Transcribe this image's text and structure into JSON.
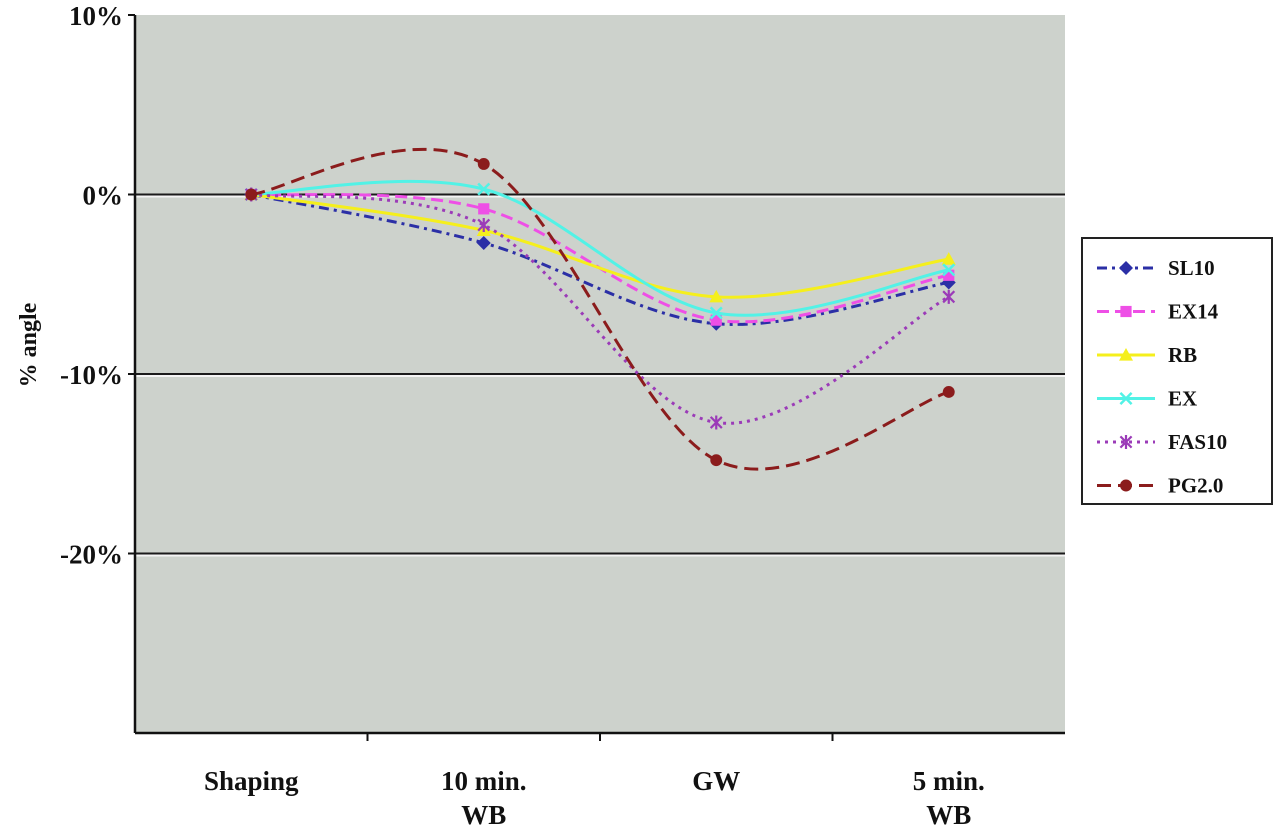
{
  "chart_data": {
    "type": "line",
    "categories": [
      "Shaping",
      "10 min.\nWB",
      "GW",
      "5 min.\nWB"
    ],
    "ylabel": "% angle",
    "ylim": [
      -30,
      10
    ],
    "y_ticks": [
      "10%",
      "0%",
      "-10%",
      "-20%"
    ],
    "y_tick_values": [
      10,
      0,
      -10,
      -20
    ],
    "grid_lines": [
      0,
      -10,
      -20
    ],
    "legend_position": "right",
    "plot_background": "#cdd2cc",
    "series": [
      {
        "name": "SL10",
        "values": [
          0,
          -2.7,
          -7.2,
          -4.9
        ],
        "color": "#2b2fa6",
        "dash": "10,5,3,5",
        "marker": "diamond"
      },
      {
        "name": "EX14",
        "values": [
          0,
          -0.8,
          -7.0,
          -4.5
        ],
        "color": "#ee4fe6",
        "dash": "12,6",
        "marker": "square"
      },
      {
        "name": "RB",
        "values": [
          0,
          -2.0,
          -5.7,
          -3.6
        ],
        "color": "#f5ef1c",
        "dash": "",
        "marker": "triangle"
      },
      {
        "name": "EX",
        "values": [
          0,
          0.3,
          -6.6,
          -4.2
        ],
        "color": "#52f2e6",
        "dash": "",
        "marker": "x"
      },
      {
        "name": "FAS10",
        "values": [
          0,
          -1.7,
          -12.7,
          -5.7
        ],
        "color": "#9b3bb8",
        "dash": "3,5",
        "marker": "star"
      },
      {
        "name": "PG2.0",
        "values": [
          0,
          1.7,
          -14.8,
          -11.0
        ],
        "color": "#8b1c1c",
        "dash": "14,7",
        "marker": "circle"
      }
    ]
  }
}
